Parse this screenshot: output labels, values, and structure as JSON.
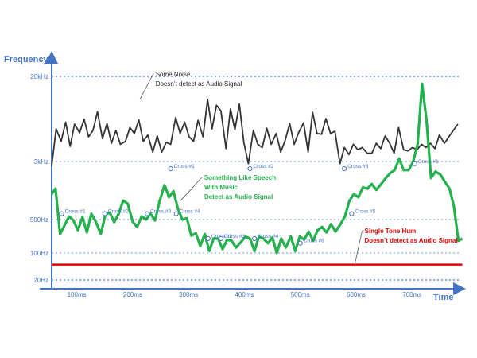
{
  "colors": {
    "axis": "#4472c4",
    "noise": "#333333",
    "speech": "#22b14c",
    "hum": "#e00000",
    "cross_marker": "#4472c4"
  },
  "chart_data": {
    "type": "line",
    "title": "",
    "xlabel": "Time",
    "ylabel": "Frequency",
    "x_ticks": [
      "100ms",
      "200ms",
      "300ms",
      "400ms",
      "500ms",
      "600ms",
      "700ms"
    ],
    "y_ticks": [
      "20kHz",
      "3kHz",
      "500Hz",
      "100Hz",
      "20Hz"
    ],
    "y_scale": "log",
    "xlim": [
      55,
      785
    ],
    "grid": "dotted horizontal lines at y ticks",
    "series": [
      {
        "key": "noise",
        "points": [
          [
            55,
            2600
          ],
          [
            63,
            6200
          ],
          [
            72,
            4700
          ],
          [
            80,
            7200
          ],
          [
            88,
            4200
          ],
          [
            96,
            6900
          ],
          [
            105,
            5700
          ],
          [
            113,
            7700
          ],
          [
            121,
            5200
          ],
          [
            129,
            6000
          ],
          [
            137,
            9100
          ],
          [
            146,
            5000
          ],
          [
            154,
            7000
          ],
          [
            162,
            4500
          ],
          [
            170,
            6000
          ],
          [
            178,
            4400
          ],
          [
            187,
            4700
          ],
          [
            195,
            6400
          ],
          [
            203,
            5600
          ],
          [
            211,
            7600
          ],
          [
            219,
            4700
          ],
          [
            227,
            5400
          ],
          [
            236,
            3700
          ],
          [
            244,
            5300
          ],
          [
            252,
            3700
          ],
          [
            260,
            4600
          ],
          [
            268,
            4400
          ],
          [
            277,
            8000
          ],
          [
            285,
            5600
          ],
          [
            293,
            7200
          ],
          [
            301,
            5200
          ],
          [
            309,
            4700
          ],
          [
            317,
            7500
          ],
          [
            326,
            5200
          ],
          [
            334,
            12000
          ],
          [
            342,
            6200
          ],
          [
            350,
            10500
          ],
          [
            358,
            9300
          ],
          [
            367,
            4000
          ],
          [
            375,
            9700
          ],
          [
            383,
            6100
          ],
          [
            391,
            10800
          ],
          [
            399,
            4600
          ],
          [
            407,
            2800
          ],
          [
            416,
            6000
          ],
          [
            424,
            4400
          ],
          [
            432,
            4100
          ],
          [
            440,
            6300
          ],
          [
            448,
            4400
          ],
          [
            457,
            5600
          ],
          [
            465,
            3700
          ],
          [
            473,
            4800
          ],
          [
            481,
            7000
          ],
          [
            489,
            4400
          ],
          [
            497,
            5700
          ],
          [
            506,
            7100
          ],
          [
            514,
            3700
          ],
          [
            522,
            9000
          ],
          [
            530,
            5600
          ],
          [
            538,
            5500
          ],
          [
            546,
            7800
          ],
          [
            554,
            5600
          ],
          [
            562,
            5900
          ],
          [
            571,
            2800
          ],
          [
            579,
            4100
          ],
          [
            587,
            3500
          ],
          [
            595,
            4400
          ],
          [
            603,
            3900
          ],
          [
            611,
            4100
          ],
          [
            620,
            3600
          ],
          [
            628,
            3600
          ],
          [
            636,
            4500
          ],
          [
            644,
            4000
          ],
          [
            652,
            5300
          ],
          [
            660,
            4500
          ],
          [
            668,
            3600
          ],
          [
            676,
            6400
          ],
          [
            685,
            3900
          ],
          [
            693,
            3800
          ],
          [
            701,
            4100
          ],
          [
            709,
            3900
          ],
          [
            717,
            4400
          ],
          [
            725,
            4100
          ],
          [
            733,
            4500
          ],
          [
            741,
            4000
          ],
          [
            749,
            5400
          ],
          [
            758,
            4500
          ],
          [
            766,
            5200
          ],
          [
            774,
            6000
          ],
          [
            782,
            6900
          ]
        ]
      },
      {
        "key": "speech",
        "points": [
          [
            55,
            1100
          ],
          [
            62,
            1300
          ],
          [
            70,
            250
          ],
          [
            78,
            380
          ],
          [
            86,
            550
          ],
          [
            94,
            480
          ],
          [
            102,
            300
          ],
          [
            110,
            540
          ],
          [
            118,
            270
          ],
          [
            126,
            600
          ],
          [
            134,
            450
          ],
          [
            143,
            250
          ],
          [
            151,
            580
          ],
          [
            159,
            620
          ],
          [
            167,
            440
          ],
          [
            175,
            600
          ],
          [
            183,
            900
          ],
          [
            191,
            820
          ],
          [
            200,
            450
          ],
          [
            208,
            350
          ],
          [
            216,
            550
          ],
          [
            224,
            500
          ],
          [
            232,
            600
          ],
          [
            240,
            480
          ],
          [
            248,
            870
          ],
          [
            257,
            1450
          ],
          [
            265,
            1000
          ],
          [
            273,
            1200
          ],
          [
            281,
            700
          ],
          [
            289,
            500
          ],
          [
            297,
            520
          ],
          [
            305,
            230
          ],
          [
            313,
            260
          ],
          [
            321,
            140
          ],
          [
            329,
            250
          ],
          [
            337,
            110
          ],
          [
            345,
            200
          ],
          [
            353,
            200
          ],
          [
            361,
            120
          ],
          [
            369,
            190
          ],
          [
            377,
            180
          ],
          [
            385,
            130
          ],
          [
            394,
            170
          ],
          [
            402,
            220
          ],
          [
            410,
            200
          ],
          [
            418,
            110
          ],
          [
            426,
            220
          ],
          [
            434,
            200
          ],
          [
            442,
            160
          ],
          [
            450,
            210
          ],
          [
            458,
            100
          ],
          [
            466,
            200
          ],
          [
            474,
            130
          ],
          [
            483,
            220
          ],
          [
            491,
            110
          ],
          [
            499,
            220
          ],
          [
            507,
            190
          ],
          [
            515,
            280
          ],
          [
            523,
            180
          ],
          [
            531,
            300
          ],
          [
            539,
            350
          ],
          [
            547,
            270
          ],
          [
            555,
            400
          ],
          [
            563,
            280
          ],
          [
            572,
            400
          ],
          [
            580,
            550
          ],
          [
            588,
            900
          ],
          [
            596,
            1100
          ],
          [
            604,
            1000
          ],
          [
            612,
            1350
          ],
          [
            620,
            1300
          ],
          [
            628,
            1500
          ],
          [
            636,
            1250
          ],
          [
            645,
            1500
          ],
          [
            653,
            1800
          ],
          [
            661,
            2100
          ],
          [
            669,
            2300
          ],
          [
            677,
            3200
          ],
          [
            685,
            2300
          ],
          [
            694,
            2300
          ],
          [
            702,
            3000
          ],
          [
            710,
            4400
          ],
          [
            718,
            17000
          ],
          [
            726,
            7500
          ],
          [
            734,
            1800
          ],
          [
            742,
            2200
          ],
          [
            751,
            2000
          ],
          [
            759,
            1600
          ],
          [
            767,
            1300
          ],
          [
            775,
            750
          ],
          [
            783,
            180
          ],
          [
            790,
            200
          ]
        ]
      },
      {
        "key": "hum",
        "points": [
          [
            55,
            50
          ],
          [
            790,
            50
          ]
        ]
      }
    ],
    "crossings": [
      {
        "label": "Cross #1",
        "x": 268,
        "y": 2400
      },
      {
        "label": "Cross #2",
        "x": 410,
        "y": 2400
      },
      {
        "label": "Cross #3",
        "x": 579,
        "y": 2400
      },
      {
        "label": "Cross #1",
        "x": 705,
        "y": 2800
      },
      {
        "label": "Cross #1",
        "x": 73,
        "y": 600
      },
      {
        "label": "Cross #2",
        "x": 150,
        "y": 600
      },
      {
        "label": "Cross #3",
        "x": 226,
        "y": 600
      },
      {
        "label": "Cross #4",
        "x": 278,
        "y": 600
      },
      {
        "label": "Cross #5",
        "x": 592,
        "y": 600
      },
      {
        "label": "Cross #2",
        "x": 335,
        "y": 200
      },
      {
        "label": "Cross #3",
        "x": 358,
        "y": 200
      },
      {
        "label": "Cross #4",
        "x": 418,
        "y": 200
      },
      {
        "label": "Cross #6",
        "x": 500,
        "y": 160
      }
    ],
    "annotations": [
      {
        "key": "noise",
        "lines": [
          "Some Noise",
          "Doesn’t detect as Audio Signal"
        ],
        "anchor": [
          241,
          20000
        ],
        "tip": [
          213,
          12000
        ]
      },
      {
        "key": "speech",
        "lines": [
          "Something Like Speech",
          "With Music",
          "Detect as Audio Signal"
        ],
        "anchor": [
          328,
          1700
        ],
        "tip": [
          286,
          900
        ]
      },
      {
        "key": "hum",
        "lines": [
          "Single Tone Hum",
          "Doesn’t detect as Audio Signal"
        ],
        "anchor": [
          615,
          260
        ],
        "tip": [
          598,
          55
        ]
      }
    ]
  }
}
